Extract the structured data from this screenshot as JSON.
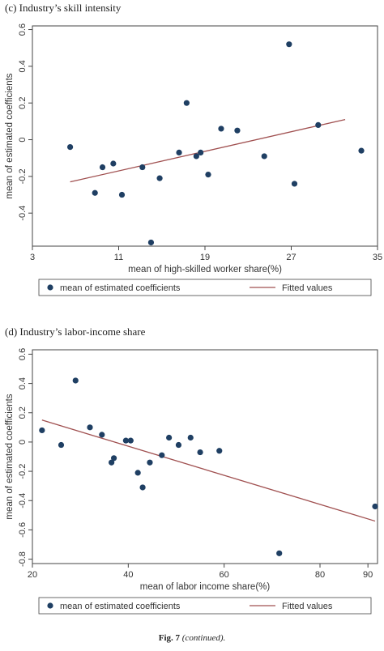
{
  "panels": [
    {
      "title": "(c) Industry’s skill intensity"
    },
    {
      "title": "(d) Industry’s labor-income share"
    }
  ],
  "caption": {
    "label": "Fig. 7",
    "note": "(continued)."
  },
  "colors": {
    "points": "#1f3f63",
    "fit": "#a05050",
    "frame": "#444444"
  },
  "chart_data": [
    {
      "type": "scatter",
      "xlabel": "mean of high-skilled worker share(%)",
      "ylabel": "mean of estimated coefficients",
      "xlim": [
        3,
        35
      ],
      "ylim": [
        -0.58,
        0.62
      ],
      "xticks": [
        3,
        11,
        19,
        27,
        35
      ],
      "yticks": [
        0.6,
        0.4,
        0.2,
        0,
        -0.2,
        -0.4
      ],
      "grid": false,
      "legend_position": "bottom",
      "legend": [
        "mean of estimated coefficients",
        "Fitted values"
      ],
      "series": [
        {
          "name": "mean of estimated coefficients",
          "type": "scatter",
          "points": [
            [
              6.5,
              -0.04
            ],
            [
              8.8,
              -0.29
            ],
            [
              9.5,
              -0.15
            ],
            [
              10.5,
              -0.13
            ],
            [
              11.3,
              -0.3
            ],
            [
              13.2,
              -0.15
            ],
            [
              14.0,
              -0.56
            ],
            [
              14.8,
              -0.21
            ],
            [
              16.6,
              -0.07
            ],
            [
              17.3,
              0.2
            ],
            [
              18.2,
              -0.09
            ],
            [
              18.6,
              -0.07
            ],
            [
              19.3,
              -0.19
            ],
            [
              20.5,
              0.06
            ],
            [
              22.0,
              0.05
            ],
            [
              24.5,
              -0.09
            ],
            [
              26.8,
              0.52
            ],
            [
              27.3,
              -0.24
            ],
            [
              29.5,
              0.08
            ],
            [
              33.5,
              -0.06
            ]
          ]
        },
        {
          "name": "Fitted values",
          "type": "line",
          "points": [
            [
              6.5,
              -0.23
            ],
            [
              32.0,
              0.11
            ]
          ]
        }
      ]
    },
    {
      "type": "scatter",
      "xlabel": "mean of labor income share(%)",
      "ylabel": "mean of estimated coefficients",
      "xlim": [
        20,
        92
      ],
      "ylim": [
        -0.83,
        0.63
      ],
      "xticks": [
        20,
        40,
        60,
        80,
        90
      ],
      "yticks": [
        0.6,
        0.4,
        0.2,
        0,
        -0.2,
        -0.4,
        -0.6,
        -0.8
      ],
      "grid": false,
      "legend_position": "bottom",
      "legend": [
        "mean of estimated coefficients",
        "Fitted values"
      ],
      "series": [
        {
          "name": "mean of estimated coefficients",
          "type": "scatter",
          "points": [
            [
              22.0,
              0.08
            ],
            [
              26.0,
              -0.02
            ],
            [
              29.0,
              0.42
            ],
            [
              32.0,
              0.1
            ],
            [
              34.5,
              0.05
            ],
            [
              36.5,
              -0.14
            ],
            [
              37.0,
              -0.11
            ],
            [
              39.5,
              0.01
            ],
            [
              40.5,
              0.01
            ],
            [
              42.0,
              -0.21
            ],
            [
              43.0,
              -0.31
            ],
            [
              44.5,
              -0.14
            ],
            [
              47.0,
              -0.09
            ],
            [
              48.5,
              0.03
            ],
            [
              50.5,
              -0.02
            ],
            [
              53.0,
              0.03
            ],
            [
              55.0,
              -0.07
            ],
            [
              59.0,
              -0.06
            ],
            [
              71.5,
              -0.76
            ],
            [
              91.5,
              -0.44
            ]
          ]
        },
        {
          "name": "Fitted values",
          "type": "line",
          "points": [
            [
              22.0,
              0.15
            ],
            [
              91.5,
              -0.54
            ]
          ]
        }
      ]
    }
  ]
}
